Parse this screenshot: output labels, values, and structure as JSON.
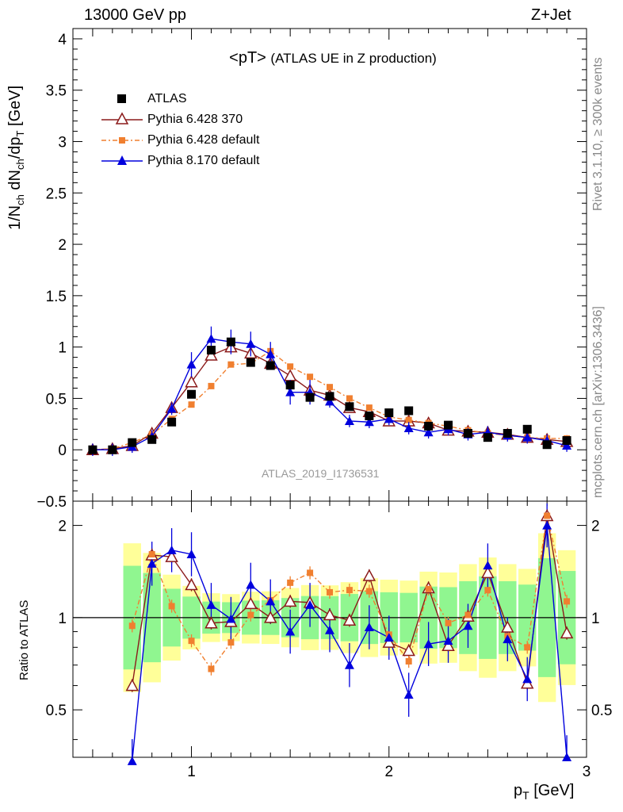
{
  "header": {
    "left": "13000 GeV pp",
    "right": "Z+Jet",
    "title_main": "<pT>",
    "title_sub": "(ATLAS UE in Z production)",
    "side_top": "Rivet 3.1.10, ≥ 300k events",
    "side_bottom": "mcplots.cern.ch [arXiv:1306.3436]",
    "watermark": "ATLAS_2019_I1736531"
  },
  "axes": {
    "ylabel_main": "1/N",
    "ylabel_main_sub1": "ch",
    "ylabel_main_mid": " dN",
    "ylabel_main_sub2": "ch",
    "ylabel_main_mid2": "/dp",
    "ylabel_main_sub3": "T",
    "ylabel_main_unit": " [GeV]",
    "ylabel_ratio": "Ratio to ATLAS",
    "xlabel": "p",
    "xlabel_sub": "T",
    "xlabel_unit": " [GeV]",
    "main_yticks": [
      "−0.5",
      "0",
      "0.5",
      "1",
      "1.5",
      "2",
      "2.5",
      "3",
      "3.5",
      "4"
    ],
    "ratio_yticks": [
      "0.5",
      "1",
      "2"
    ],
    "xticks": [
      "1",
      "2",
      "3"
    ]
  },
  "legend": [
    {
      "label": "ATLAS",
      "color": "#000000",
      "marker": "square-filled"
    },
    {
      "label": "Pythia 6.428 370",
      "color": "#8b1a1a",
      "marker": "triangle-open"
    },
    {
      "label": "Pythia 6.428 default",
      "color": "#f07f2f",
      "marker": "square-filled"
    },
    {
      "label": "Pythia 8.170 default",
      "color": "#0000dd",
      "marker": "triangle-filled"
    }
  ],
  "chart_data": {
    "type": "line",
    "title": "<pT> (ATLAS UE in Z production)",
    "xlabel": "pT [GeV]",
    "ylabel": "1/Nch dNch/dpT [GeV]",
    "xlim": [
      0.4,
      3.0
    ],
    "ylim": [
      -0.5,
      4.1
    ],
    "ratio_ylabel": "Ratio to ATLAS",
    "ratio_ylim": [
      0.35,
      2.4
    ],
    "ratio_scale": "log",
    "x": [
      0.5,
      0.6,
      0.7,
      0.8,
      0.9,
      1.0,
      1.1,
      1.2,
      1.3,
      1.4,
      1.5,
      1.6,
      1.7,
      1.8,
      1.9,
      2.0,
      2.1,
      2.2,
      2.3,
      2.4,
      2.5,
      2.6,
      2.7,
      2.8,
      2.9
    ],
    "series": [
      {
        "name": "ATLAS",
        "values": [
          0.0,
          0.0,
          0.07,
          0.1,
          0.27,
          0.54,
          0.97,
          1.05,
          0.85,
          0.82,
          0.63,
          0.51,
          0.52,
          0.42,
          0.33,
          0.36,
          0.38,
          0.23,
          0.24,
          0.16,
          0.12,
          0.16,
          0.2,
          0.05,
          0.09
        ]
      },
      {
        "name": "Pythia 6.428 370",
        "values": [
          0.0,
          0.01,
          0.04,
          0.16,
          0.41,
          0.66,
          0.92,
          1.0,
          0.94,
          0.84,
          0.72,
          0.58,
          0.53,
          0.41,
          0.37,
          0.28,
          0.28,
          0.26,
          0.19,
          0.18,
          0.17,
          0.15,
          0.12,
          0.1,
          0.08
        ]
      },
      {
        "name": "Pythia 6.428 default",
        "values": [
          0.0,
          0.01,
          0.07,
          0.15,
          0.3,
          0.44,
          0.62,
          0.83,
          0.84,
          0.96,
          0.81,
          0.71,
          0.61,
          0.5,
          0.41,
          0.32,
          0.29,
          0.26,
          0.23,
          0.19,
          0.16,
          0.14,
          0.12,
          0.11,
          0.11
        ]
      },
      {
        "name": "Pythia 8.170 default",
        "values": [
          0.0,
          0.0,
          0.03,
          0.13,
          0.4,
          0.83,
          1.08,
          1.05,
          1.03,
          0.93,
          0.56,
          0.56,
          0.47,
          0.28,
          0.27,
          0.3,
          0.21,
          0.17,
          0.2,
          0.15,
          0.17,
          0.14,
          0.12,
          0.09,
          0.04
        ]
      }
    ],
    "ratio_series": [
      {
        "name": "Pythia 6.428 370",
        "values": [
          null,
          null,
          0.6,
          1.6,
          1.58,
          1.28,
          0.96,
          0.97,
          1.11,
          1.0,
          1.13,
          1.12,
          1.02,
          0.98,
          1.37,
          0.83,
          0.78,
          1.25,
          0.81,
          1.01,
          1.4,
          0.93,
          0.61,
          2.15,
          0.89
        ]
      },
      {
        "name": "Pythia 6.428 default",
        "values": [
          null,
          null,
          0.94,
          1.61,
          1.09,
          0.84,
          0.68,
          0.83,
          1.02,
          1.14,
          1.3,
          1.4,
          1.21,
          1.23,
          1.22,
          0.88,
          0.72,
          1.24,
          0.96,
          1.02,
          1.23,
          0.87,
          0.8,
          2.15,
          1.13
        ]
      },
      {
        "name": "Pythia 8.170 default",
        "values": [
          null,
          null,
          0.34,
          1.5,
          1.66,
          1.61,
          1.1,
          0.99,
          1.28,
          1.13,
          0.9,
          1.1,
          0.91,
          0.7,
          0.93,
          0.86,
          0.56,
          0.82,
          0.84,
          0.94,
          1.48,
          0.85,
          0.63,
          2.0,
          0.35
        ]
      }
    ],
    "band_colors": {
      "inner": "#90f690",
      "outer": "#ffff99"
    },
    "legend_position": "top-left"
  }
}
